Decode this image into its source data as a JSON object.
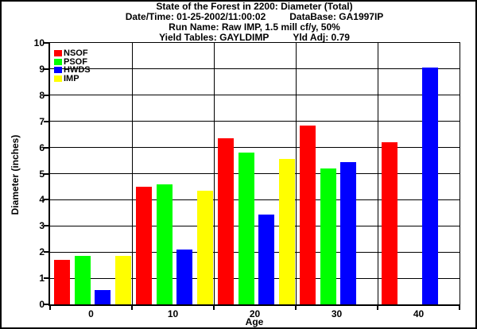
{
  "header": {
    "title": "State of the Forest in 2200: Diameter (Total)",
    "datetime": "Date/Time: 01-25-2002/11:00:02",
    "database": "DataBase: GA1997IP",
    "run_name": "Run Name: Raw IMP, 1.5 mill cf/y, 50%",
    "yield_tables": "Yield Tables: GAYLDIMP",
    "yield_adj": "Yld Adj: 0.79"
  },
  "axes": {
    "y_title": "Diameter (inches)",
    "x_title": "Age",
    "ytick_labels": [
      "0",
      "1",
      "2",
      "3",
      "4",
      "5",
      "6",
      "7",
      "8",
      "9",
      "10"
    ],
    "xtick_labels": [
      "0",
      "10",
      "20",
      "30",
      "40"
    ]
  },
  "chart_data": {
    "type": "bar",
    "title": "State of the Forest in 2200: Diameter (Total)",
    "xlabel": "Age",
    "ylabel": "Diameter (inches)",
    "ylim": [
      0,
      10
    ],
    "ytick_step": 1,
    "grid": true,
    "legend_position": "top-left",
    "categories": [
      "0",
      "10",
      "20",
      "30",
      "40"
    ],
    "series": [
      {
        "name": "NSOF",
        "color": "#ff0000",
        "values": [
          1.7,
          4.5,
          6.35,
          6.85,
          6.2
        ]
      },
      {
        "name": "PSOF",
        "color": "#00ff00",
        "values": [
          1.85,
          4.6,
          5.8,
          5.2,
          null
        ]
      },
      {
        "name": "HWDS",
        "color": "#0000ff",
        "values": [
          0.55,
          2.1,
          3.45,
          5.45,
          9.05
        ]
      },
      {
        "name": "IMP",
        "color": "#ffff00",
        "values": [
          1.85,
          4.35,
          5.55,
          null,
          null
        ]
      }
    ]
  },
  "colors": {
    "background": "#ffffff",
    "frame_border": "#000000",
    "text": "#000000"
  }
}
